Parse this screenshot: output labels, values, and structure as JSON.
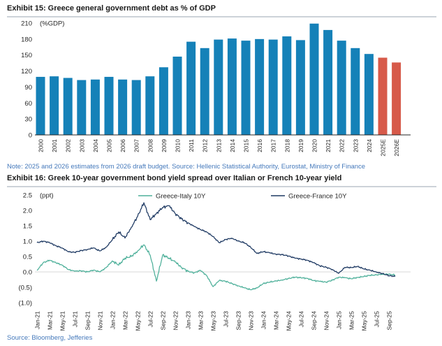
{
  "chart_data": [
    {
      "type": "bar",
      "title": "Exhibit 15: Greece general government debt as % of GDP",
      "unit_label": "(%GDP)",
      "note": "Note: 2025 and 2026 estimates from 2026 draft budget. Source: Hellenic Statistical Authority, Eurostat, Ministry of Finance",
      "categories": [
        "2000",
        "2001",
        "2002",
        "2003",
        "2004",
        "2005",
        "2006",
        "2007",
        "2008",
        "2009",
        "2010",
        "2011",
        "2012",
        "2013",
        "2014",
        "2015",
        "2016",
        "2017",
        "2018",
        "2019",
        "2020",
        "2021",
        "2022",
        "2023",
        "2024",
        "2025E",
        "2026E"
      ],
      "values": [
        109,
        110,
        107,
        103,
        104,
        109,
        104,
        103,
        110,
        127,
        147,
        175,
        163,
        179,
        181,
        177,
        180,
        179,
        185,
        178,
        209,
        197,
        177,
        163,
        152,
        145,
        136
      ],
      "estimate_categories": [
        "2025E",
        "2026E"
      ],
      "xlabel": "",
      "ylabel": "%GDP",
      "ylim": [
        0,
        210
      ],
      "yticks": [
        0,
        30,
        60,
        90,
        120,
        150,
        180,
        210
      ],
      "grid": "off",
      "colors": {
        "actual": "#1581b8",
        "estimate": "#d75a4a"
      }
    },
    {
      "type": "line",
      "title": "Exhibit 16: Greek 10-year government bond yield spread over Italian or French 10-year yield",
      "unit_label": "(ppt)",
      "source": "Source: Bloomberg, Jefferies",
      "xlabel": "",
      "ylabel": "ppt",
      "ylim": [
        -1.0,
        2.5
      ],
      "yticks": [
        2.5,
        2.0,
        1.5,
        1.0,
        0.5,
        0.0,
        -0.5,
        -1.0
      ],
      "ytick_labels": [
        "2.5",
        "2.0",
        "1.5",
        "1.0",
        "0.5",
        "0.0",
        "(0.5)",
        "(1.0)"
      ],
      "x_tick_labels": [
        "Jan-21",
        "Mar-21",
        "May-21",
        "Jul-21",
        "Sep-21",
        "Nov-21",
        "Jan-22",
        "Mar-22",
        "May-22",
        "Jul-22",
        "Sep-22",
        "Nov-22",
        "Jan-23",
        "Mar-23",
        "May-23",
        "Jul-23",
        "Sep-23",
        "Nov-23",
        "Jan-24",
        "Mar-24",
        "May-24",
        "Jul-24",
        "Sep-24",
        "Nov-24",
        "Jan-25",
        "Mar-25",
        "May-25",
        "Jul-25",
        "Sep-25"
      ],
      "x_frequency": "monthly values from Jan-21",
      "grid": "zero-line-only",
      "legend_position": "top-center",
      "series": [
        {
          "name": "Greece-Italy 10Y",
          "color": "#4eb09a",
          "values": [
            0.05,
            0.3,
            0.38,
            0.3,
            0.22,
            0.08,
            0.02,
            0.04,
            0.0,
            0.06,
            0.0,
            0.14,
            0.36,
            0.22,
            0.45,
            0.5,
            0.68,
            0.88,
            0.55,
            -0.3,
            0.55,
            0.45,
            0.32,
            0.15,
            0.02,
            -0.03,
            0.05,
            -0.12,
            -0.48,
            -0.28,
            -0.3,
            -0.38,
            -0.45,
            -0.52,
            -0.58,
            -0.52,
            -0.38,
            -0.33,
            -0.3,
            -0.26,
            -0.22,
            -0.17,
            -0.19,
            -0.21,
            -0.28,
            -0.31,
            -0.33,
            -0.27,
            -0.17,
            -0.19,
            -0.22,
            -0.18,
            -0.15,
            -0.11,
            -0.1,
            -0.07,
            -0.08,
            -0.1
          ]
        },
        {
          "name": "Greece-France 10Y",
          "color": "#1f3a63",
          "values": [
            0.95,
            1.0,
            0.95,
            0.85,
            0.78,
            0.65,
            0.64,
            0.69,
            0.73,
            0.78,
            0.68,
            0.8,
            1.05,
            1.3,
            1.1,
            1.45,
            1.8,
            2.25,
            1.7,
            1.9,
            2.1,
            2.15,
            1.9,
            1.72,
            1.6,
            1.48,
            1.38,
            1.3,
            1.15,
            0.95,
            1.05,
            1.1,
            1.0,
            0.95,
            0.8,
            0.6,
            0.66,
            0.62,
            0.58,
            0.56,
            0.52,
            0.45,
            0.42,
            0.38,
            0.3,
            0.2,
            0.15,
            0.08,
            -0.05,
            0.15,
            0.14,
            0.18,
            0.1,
            0.05,
            0.0,
            -0.06,
            -0.12,
            -0.15
          ]
        }
      ]
    }
  ]
}
